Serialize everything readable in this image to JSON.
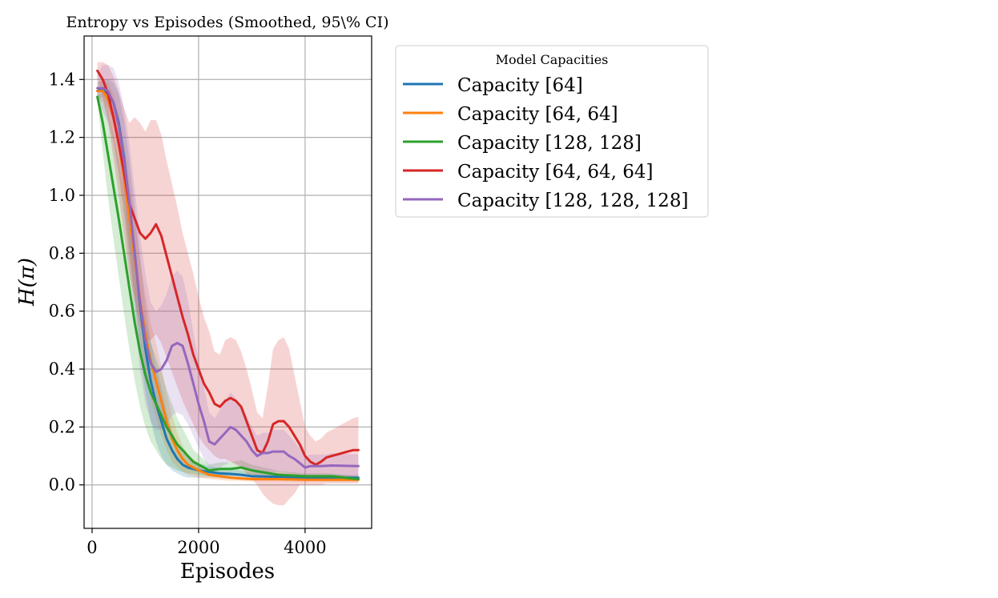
{
  "chart_data": {
    "type": "line",
    "title": "Entropy vs Episodes (Smoothed, 95\\% CI)",
    "xlabel": "Episodes",
    "ylabel": "H(π)",
    "xlim": [
      -150,
      5250
    ],
    "ylim": [
      -0.15,
      1.55
    ],
    "xticks": [
      0,
      2000,
      4000
    ],
    "yticks": [
      0.0,
      0.2,
      0.4,
      0.6,
      0.8,
      1.0,
      1.2,
      1.4
    ],
    "xtick_labels": [
      "0",
      "2000",
      "4000"
    ],
    "ytick_labels": [
      "0.0",
      "0.2",
      "0.4",
      "0.6",
      "0.8",
      "1.0",
      "1.2",
      "1.4"
    ],
    "grid": true,
    "legend": {
      "title": "Model Capacities",
      "placement": "outside-right-top"
    },
    "series": [
      {
        "name": "Capacity [64]",
        "color": "#1f77b4",
        "x": [
          100,
          200,
          300,
          400,
          500,
          600,
          700,
          800,
          900,
          1000,
          1100,
          1200,
          1300,
          1400,
          1500,
          1600,
          1700,
          1800,
          2000,
          2200,
          2400,
          2600,
          2800,
          3000,
          3500,
          4000,
          4500,
          5000
        ],
        "y": [
          1.36,
          1.37,
          1.35,
          1.32,
          1.25,
          1.13,
          0.97,
          0.8,
          0.62,
          0.47,
          0.36,
          0.28,
          0.22,
          0.16,
          0.12,
          0.09,
          0.07,
          0.06,
          0.05,
          0.045,
          0.04,
          0.038,
          0.035,
          0.03,
          0.028,
          0.025,
          0.025,
          0.025
        ],
        "ci_low": [
          1.33,
          1.34,
          1.3,
          1.25,
          1.15,
          1.0,
          0.82,
          0.64,
          0.45,
          0.32,
          0.22,
          0.15,
          0.1,
          0.07,
          0.05,
          0.04,
          0.03,
          0.025,
          0.025,
          0.025,
          0.022,
          0.02,
          0.02,
          0.018,
          0.016,
          0.015,
          0.015,
          0.015
        ],
        "ci_high": [
          1.39,
          1.4,
          1.4,
          1.39,
          1.35,
          1.26,
          1.12,
          0.96,
          0.79,
          0.62,
          0.5,
          0.41,
          0.34,
          0.25,
          0.19,
          0.14,
          0.11,
          0.095,
          0.075,
          0.065,
          0.058,
          0.056,
          0.05,
          0.042,
          0.04,
          0.035,
          0.035,
          0.035
        ]
      },
      {
        "name": "Capacity [64, 64]",
        "color": "#ff7f0e",
        "x": [
          100,
          200,
          300,
          400,
          500,
          600,
          700,
          800,
          900,
          1000,
          1100,
          1200,
          1300,
          1400,
          1500,
          1600,
          1700,
          1800,
          2000,
          2200,
          2400,
          2600,
          2800,
          3000,
          3500,
          4000,
          4500,
          5000
        ],
        "y": [
          1.36,
          1.36,
          1.33,
          1.27,
          1.18,
          1.06,
          0.92,
          0.78,
          0.64,
          0.52,
          0.43,
          0.36,
          0.29,
          0.22,
          0.16,
          0.12,
          0.09,
          0.07,
          0.05,
          0.035,
          0.03,
          0.025,
          0.022,
          0.02,
          0.02,
          0.018,
          0.018,
          0.018
        ],
        "ci_low": [
          1.33,
          1.32,
          1.27,
          1.19,
          1.08,
          0.94,
          0.79,
          0.64,
          0.5,
          0.39,
          0.3,
          0.23,
          0.17,
          0.12,
          0.08,
          0.06,
          0.045,
          0.035,
          0.025,
          0.02,
          0.016,
          0.014,
          0.013,
          0.012,
          0.012,
          0.011,
          0.011,
          0.011
        ],
        "ci_high": [
          1.39,
          1.4,
          1.39,
          1.35,
          1.28,
          1.18,
          1.05,
          0.92,
          0.78,
          0.66,
          0.56,
          0.49,
          0.41,
          0.32,
          0.24,
          0.18,
          0.135,
          0.105,
          0.075,
          0.05,
          0.044,
          0.036,
          0.031,
          0.028,
          0.028,
          0.025,
          0.025,
          0.025
        ]
      },
      {
        "name": "Capacity [128, 128]",
        "color": "#2ca02c",
        "x": [
          100,
          200,
          300,
          400,
          500,
          600,
          700,
          800,
          900,
          1000,
          1100,
          1200,
          1300,
          1400,
          1500,
          1600,
          1700,
          1800,
          1900,
          2000,
          2200,
          2400,
          2600,
          2800,
          3000,
          3500,
          4000,
          4500,
          5000
        ],
        "y": [
          1.34,
          1.25,
          1.14,
          1.03,
          0.92,
          0.8,
          0.68,
          0.56,
          0.46,
          0.38,
          0.32,
          0.28,
          0.24,
          0.2,
          0.17,
          0.14,
          0.12,
          0.1,
          0.08,
          0.07,
          0.05,
          0.055,
          0.055,
          0.06,
          0.05,
          0.035,
          0.03,
          0.03,
          0.02
        ],
        "ci_low": [
          1.33,
          1.15,
          0.99,
          0.85,
          0.72,
          0.59,
          0.47,
          0.36,
          0.27,
          0.2,
          0.15,
          0.12,
          0.09,
          0.07,
          0.06,
          0.05,
          0.045,
          0.04,
          0.038,
          0.035,
          0.03,
          0.032,
          0.032,
          0.035,
          0.03,
          0.022,
          0.02,
          0.02,
          0.012
        ],
        "ci_high": [
          1.35,
          1.35,
          1.29,
          1.21,
          1.12,
          1.01,
          0.89,
          0.76,
          0.65,
          0.56,
          0.49,
          0.44,
          0.39,
          0.33,
          0.28,
          0.23,
          0.195,
          0.16,
          0.122,
          0.105,
          0.07,
          0.078,
          0.078,
          0.085,
          0.07,
          0.048,
          0.04,
          0.04,
          0.028
        ]
      },
      {
        "name": "Capacity [64, 64, 64]",
        "color": "#d62728",
        "x": [
          100,
          200,
          300,
          400,
          500,
          600,
          700,
          800,
          900,
          1000,
          1100,
          1200,
          1300,
          1400,
          1500,
          1600,
          1700,
          1800,
          1900,
          2000,
          2100,
          2200,
          2300,
          2400,
          2500,
          2600,
          2700,
          2800,
          2900,
          3000,
          3100,
          3200,
          3300,
          3400,
          3500,
          3600,
          3700,
          3800,
          3900,
          4000,
          4100,
          4200,
          4300,
          4400,
          4500,
          4600,
          4700,
          4800,
          4900,
          5000
        ],
        "y": [
          1.43,
          1.4,
          1.35,
          1.27,
          1.18,
          1.08,
          0.97,
          0.92,
          0.87,
          0.85,
          0.87,
          0.9,
          0.86,
          0.79,
          0.72,
          0.65,
          0.58,
          0.52,
          0.45,
          0.4,
          0.35,
          0.32,
          0.28,
          0.27,
          0.29,
          0.3,
          0.29,
          0.27,
          0.22,
          0.17,
          0.12,
          0.11,
          0.15,
          0.21,
          0.22,
          0.22,
          0.2,
          0.17,
          0.14,
          0.1,
          0.08,
          0.07,
          0.08,
          0.095,
          0.1,
          0.105,
          0.11,
          0.115,
          0.12,
          0.12
        ],
        "ci_low": [
          1.4,
          1.34,
          1.25,
          1.13,
          1.0,
          0.86,
          0.72,
          0.64,
          0.55,
          0.5,
          0.5,
          0.52,
          0.49,
          0.44,
          0.39,
          0.34,
          0.29,
          0.25,
          0.21,
          0.17,
          0.14,
          0.12,
          0.1,
          0.09,
          0.09,
          0.08,
          0.07,
          0.06,
          0.04,
          0.02,
          0.0,
          -0.03,
          -0.05,
          -0.065,
          -0.07,
          -0.07,
          -0.05,
          -0.03,
          0.0,
          0.0,
          0.0,
          0.0,
          0.0,
          0.005,
          0.005,
          0.005,
          0.005,
          0.005,
          0.005,
          0.005
        ],
        "ci_high": [
          1.46,
          1.46,
          1.45,
          1.41,
          1.36,
          1.3,
          1.25,
          1.27,
          1.25,
          1.22,
          1.26,
          1.26,
          1.21,
          1.12,
          1.04,
          0.96,
          0.87,
          0.8,
          0.73,
          0.65,
          0.58,
          0.53,
          0.46,
          0.45,
          0.5,
          0.51,
          0.5,
          0.46,
          0.4,
          0.33,
          0.25,
          0.23,
          0.34,
          0.47,
          0.5,
          0.51,
          0.47,
          0.38,
          0.29,
          0.2,
          0.17,
          0.15,
          0.16,
          0.18,
          0.19,
          0.2,
          0.21,
          0.22,
          0.23,
          0.235
        ]
      },
      {
        "name": "Capacity [128, 128, 128]",
        "color": "#9467bd",
        "x": [
          100,
          200,
          300,
          400,
          500,
          600,
          700,
          800,
          900,
          1000,
          1100,
          1200,
          1300,
          1400,
          1500,
          1600,
          1700,
          1800,
          1900,
          2000,
          2100,
          2200,
          2300,
          2400,
          2500,
          2600,
          2700,
          2800,
          2900,
          3000,
          3100,
          3200,
          3300,
          3400,
          3500,
          3600,
          3700,
          3800,
          3900,
          4000,
          4100,
          4200,
          4300,
          4400,
          4500,
          5000
        ],
        "y": [
          1.37,
          1.37,
          1.36,
          1.32,
          1.24,
          1.12,
          0.98,
          0.8,
          0.63,
          0.5,
          0.42,
          0.39,
          0.4,
          0.43,
          0.48,
          0.49,
          0.48,
          0.42,
          0.35,
          0.28,
          0.22,
          0.15,
          0.14,
          0.16,
          0.18,
          0.2,
          0.19,
          0.17,
          0.15,
          0.12,
          0.1,
          0.11,
          0.11,
          0.115,
          0.115,
          0.115,
          0.1,
          0.09,
          0.075,
          0.06,
          0.065,
          0.065,
          0.065,
          0.066,
          0.067,
          0.065
        ],
        "ci_low": [
          1.32,
          1.29,
          1.25,
          1.18,
          1.07,
          0.93,
          0.76,
          0.57,
          0.4,
          0.28,
          0.22,
          0.19,
          0.19,
          0.21,
          0.24,
          0.25,
          0.24,
          0.21,
          0.17,
          0.13,
          0.09,
          0.06,
          0.05,
          0.06,
          0.07,
          0.08,
          0.075,
          0.065,
          0.055,
          0.045,
          0.04,
          0.04,
          0.04,
          0.045,
          0.045,
          0.045,
          0.04,
          0.035,
          0.03,
          0.025,
          0.025,
          0.025,
          0.025,
          0.025,
          0.025,
          0.025
        ],
        "ci_high": [
          1.42,
          1.45,
          1.45,
          1.44,
          1.39,
          1.3,
          1.18,
          1.02,
          0.86,
          0.73,
          0.63,
          0.6,
          0.62,
          0.66,
          0.72,
          0.74,
          0.72,
          0.64,
          0.53,
          0.43,
          0.34,
          0.25,
          0.23,
          0.26,
          0.29,
          0.32,
          0.3,
          0.27,
          0.24,
          0.2,
          0.17,
          0.18,
          0.18,
          0.19,
          0.19,
          0.19,
          0.17,
          0.15,
          0.125,
          0.1,
          0.105,
          0.105,
          0.105,
          0.105,
          0.11,
          0.105
        ]
      }
    ]
  }
}
